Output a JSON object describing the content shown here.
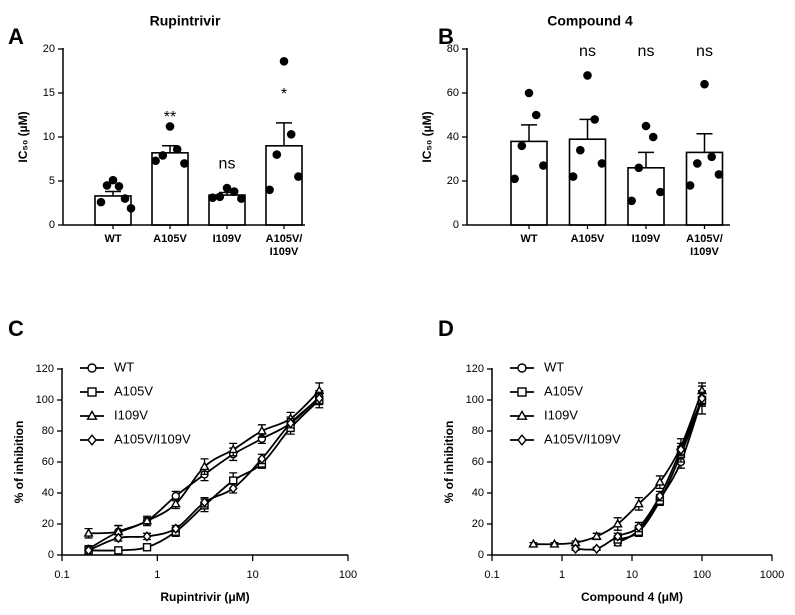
{
  "chart_data": [
    {
      "type": "bar",
      "panel_label": "A",
      "title": "Rupintrivir",
      "y_label": "IC₅₀ (µM)",
      "categories": [
        "WT",
        "A105V",
        "I109V",
        "A105V/\nI109V"
      ],
      "values": [
        3.3,
        8.2,
        3.4,
        9.0
      ],
      "errors": [
        0.5,
        0.8,
        0.3,
        2.6
      ],
      "points": [
        [
          5.1,
          4.4,
          4.5,
          3.0,
          2.6,
          1.9
        ],
        [
          11.2,
          8.6,
          7.9,
          7.0,
          7.3
        ],
        [
          4.2,
          3.8,
          3.2,
          3.0,
          3.1
        ],
        [
          18.6,
          10.3,
          8.0,
          5.5,
          4.0
        ]
      ],
      "annotations": [
        null,
        "**",
        "ns",
        "*"
      ],
      "color": "#000000",
      "ylim": [
        0,
        20
      ],
      "yticks": [
        0,
        5,
        10,
        15,
        20
      ]
    },
    {
      "type": "bar",
      "panel_label": "B",
      "title": "Compound 4",
      "y_label": "IC₅₀ (µM)",
      "categories": [
        "WT",
        "A105V",
        "I109V",
        "A105V/\nI109V"
      ],
      "values": [
        38,
        39,
        26,
        33
      ],
      "errors": [
        7.5,
        9,
        7,
        8.5
      ],
      "points": [
        [
          60,
          50,
          36,
          27,
          21
        ],
        [
          68,
          48,
          34,
          28,
          22
        ],
        [
          45,
          40,
          26,
          15,
          11
        ],
        [
          64,
          31,
          28,
          23,
          18
        ]
      ],
      "annotations": [
        null,
        "ns",
        "ns",
        "ns"
      ],
      "color": "#000000",
      "ylim": [
        0,
        80
      ],
      "yticks": [
        0,
        20,
        40,
        60,
        80
      ]
    },
    {
      "type": "scatter",
      "panel_label": "C",
      "x_label": "Rupintrivir (μM)",
      "y_label": "% of inhibition",
      "log_x": true,
      "x": [
        0.19,
        0.39,
        0.78,
        1.56,
        3.125,
        6.25,
        12.5,
        25,
        50
      ],
      "series": [
        {
          "name": "WT",
          "marker": "circle",
          "color": "#000000",
          "values": [
            4,
            15,
            22,
            38,
            52,
            65,
            75,
            85,
            102
          ],
          "errors": [
            2,
            4,
            2,
            3,
            4,
            4,
            3,
            4,
            4
          ]
        },
        {
          "name": "A105V",
          "marker": "square",
          "color": "#000000",
          "values": [
            3,
            3,
            5,
            15,
            32,
            48,
            59,
            82,
            100
          ],
          "errors": [
            1,
            1,
            1,
            3,
            4,
            5,
            3,
            4,
            5
          ]
        },
        {
          "name": "I109V",
          "marker": "triangle",
          "color": "#000000",
          "values": [
            14,
            15,
            22,
            33,
            57,
            68,
            80,
            88,
            106
          ],
          "errors": [
            3,
            4,
            3,
            3,
            5,
            4,
            4,
            4,
            5
          ]
        },
        {
          "name": "A105V/I109V",
          "marker": "diamond",
          "color": "#000000",
          "values": [
            3,
            11,
            12,
            17,
            34,
            43,
            62,
            85,
            101
          ],
          "errors": [
            1,
            2,
            2,
            2,
            3,
            3,
            3,
            3,
            4
          ]
        }
      ],
      "xlim": [
        0.1,
        100
      ],
      "xticks": [
        0.1,
        1,
        10,
        100
      ],
      "ylim": [
        0,
        120
      ],
      "yticks": [
        0,
        20,
        40,
        60,
        80,
        100,
        120
      ]
    },
    {
      "type": "scatter",
      "panel_label": "D",
      "x_label": "Compound 4 (μM)",
      "y_label": "% of inhibition",
      "log_x": true,
      "x": [
        0.39,
        0.78,
        1.56,
        3.125,
        6.25,
        12.5,
        25,
        50,
        100
      ],
      "series": [
        {
          "name": "WT",
          "marker": "circle",
          "color": "#000000",
          "values": [
            null,
            null,
            null,
            null,
            8,
            16,
            36,
            60,
            101
          ],
          "errors": [
            null,
            null,
            null,
            null,
            2,
            3,
            3,
            4,
            5
          ]
        },
        {
          "name": "A105V",
          "marker": "square",
          "color": "#000000",
          "values": [
            null,
            null,
            null,
            null,
            10,
            15,
            35,
            65,
            100
          ],
          "errors": [
            null,
            null,
            null,
            null,
            2,
            3,
            3,
            5,
            9
          ]
        },
        {
          "name": "I109V",
          "marker": "triangle",
          "color": "#000000",
          "values": [
            7,
            7,
            8,
            12,
            20,
            33,
            47,
            70,
            106
          ],
          "errors": [
            1,
            1,
            1,
            2,
            4,
            4,
            4,
            5,
            5
          ]
        },
        {
          "name": "A105V/I109V",
          "marker": "diamond",
          "color": "#000000",
          "values": [
            null,
            null,
            4,
            4,
            12,
            18,
            38,
            68,
            101
          ],
          "errors": [
            null,
            null,
            1,
            1,
            2,
            3,
            3,
            4,
            4
          ]
        }
      ],
      "xlim": [
        0.1,
        1000
      ],
      "xticks": [
        0.1,
        1,
        10,
        100,
        1000
      ],
      "ylim": [
        0,
        120
      ],
      "yticks": [
        0,
        20,
        40,
        60,
        80,
        100,
        120
      ]
    }
  ]
}
